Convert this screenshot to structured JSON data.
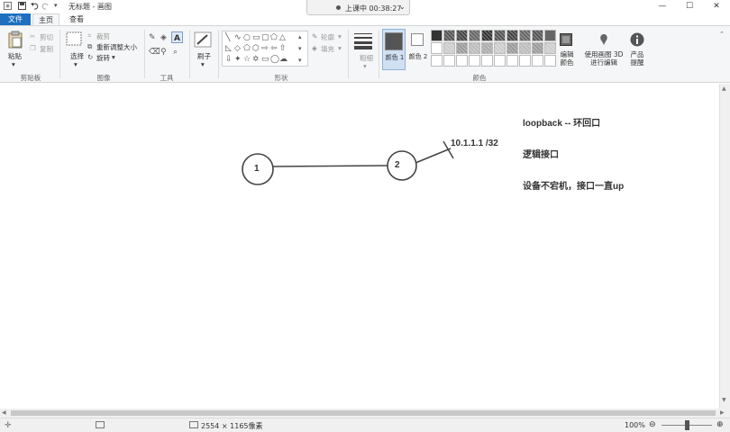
{
  "titlebar": {
    "title": "无标题 - 画图",
    "recording": "上课中 00:38:27",
    "controls": {
      "minimize": "—",
      "maximize": "☐",
      "close": "✕"
    }
  },
  "tabs": {
    "file": "文件",
    "home": "主页",
    "view": "查看"
  },
  "clipboard": {
    "paste": "粘贴",
    "cut": "剪切",
    "copy": "复制",
    "group": "剪贴板"
  },
  "image": {
    "select": "选择",
    "crop": "裁剪",
    "resize": "重新调整大小",
    "rotate": "旋转",
    "group": "图像"
  },
  "tools": {
    "group": "工具"
  },
  "brushes": {
    "label": "刷子"
  },
  "shapes": {
    "outline": "轮廓",
    "fill": "填充",
    "group": "形状"
  },
  "size": {
    "label": "粗细"
  },
  "colors": {
    "color1_label": "颜色 1",
    "color2_label": "颜色 2",
    "edit_colors": "编辑颜色",
    "paint3d": "使用画图 3D 进行编辑",
    "product_alert": "产品提醒",
    "group": "颜色",
    "color1": "#555555",
    "color2": "#ffffff"
  },
  "canvas_text": {
    "node1": "1",
    "node2": "2",
    "ip": "10.1.1.1 /32",
    "loopback": "loopback -- 环回口",
    "logical": "逻辑接口",
    "always_up": "设备不宕机，接口一直up"
  },
  "status": {
    "dimensions": "2554 × 1165像素",
    "zoom": "100%"
  }
}
